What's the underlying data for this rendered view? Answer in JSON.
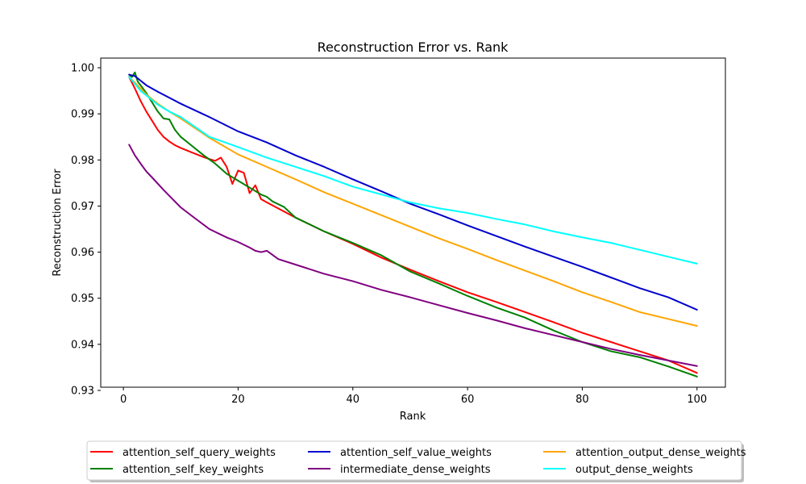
{
  "chart_data": {
    "type": "line",
    "title": "Reconstruction Error vs. Rank",
    "xlabel": "Rank",
    "ylabel": "Reconstruction Error",
    "xlim": [
      -3.95,
      104.95
    ],
    "ylim": [
      0.9307,
      1.0021
    ],
    "xticks": [
      0,
      20,
      40,
      60,
      80,
      100
    ],
    "xtick_labels": [
      "0",
      "20",
      "40",
      "60",
      "80",
      "100"
    ],
    "yticks": [
      0.93,
      0.94,
      0.95,
      0.96,
      0.97,
      0.98,
      0.99,
      1.0
    ],
    "ytick_labels": [
      "0.93",
      "0.94",
      "0.95",
      "0.96",
      "0.97",
      "0.98",
      "0.99",
      "1.00"
    ],
    "grid": false,
    "legend_placement": "bottom-center",
    "legend_columns": 3,
    "series": [
      {
        "name": "attention_self_query_weights",
        "color": "#ff0000",
        "x": [
          1,
          2,
          3,
          4,
          5,
          6,
          7,
          8,
          9,
          10,
          12,
          14,
          16,
          17,
          18,
          19,
          20,
          21,
          22,
          23,
          24,
          25,
          30,
          35,
          40,
          45,
          50,
          55,
          60,
          65,
          70,
          75,
          80,
          85,
          90,
          95,
          100
        ],
        "y": [
          0.998,
          0.9955,
          0.9928,
          0.9905,
          0.9885,
          0.9865,
          0.985,
          0.984,
          0.9832,
          0.9826,
          0.9816,
          0.9806,
          0.9798,
          0.9805,
          0.9785,
          0.9748,
          0.9777,
          0.9772,
          0.9728,
          0.9745,
          0.9715,
          0.9708,
          0.9675,
          0.9645,
          0.9618,
          0.9588,
          0.9562,
          0.9537,
          0.9513,
          0.9492,
          0.947,
          0.9448,
          0.9425,
          0.9405,
          0.9385,
          0.9365,
          0.9338
        ]
      },
      {
        "name": "attention_self_key_weights",
        "color": "#008000",
        "x": [
          1,
          1.5,
          2,
          2.5,
          3,
          4,
          5,
          6,
          7,
          8,
          9,
          10,
          12,
          14,
          16,
          18,
          20,
          22,
          24,
          25,
          26,
          28,
          30,
          35,
          40,
          45,
          50,
          55,
          60,
          65,
          70,
          75,
          80,
          85,
          90,
          95,
          100
        ],
        "y": [
          0.9985,
          0.998,
          0.999,
          0.997,
          0.9962,
          0.9945,
          0.9925,
          0.9905,
          0.989,
          0.9888,
          0.9865,
          0.985,
          0.983,
          0.981,
          0.9792,
          0.977,
          0.9755,
          0.974,
          0.9725,
          0.972,
          0.971,
          0.9698,
          0.9675,
          0.9645,
          0.962,
          0.9593,
          0.9558,
          0.9532,
          0.9505,
          0.948,
          0.9458,
          0.943,
          0.9405,
          0.9385,
          0.9372,
          0.9352,
          0.933
        ]
      },
      {
        "name": "attention_self_value_weights",
        "color": "#0000cd",
        "x": [
          1,
          2,
          3,
          4,
          5,
          6,
          8,
          10,
          15,
          20,
          25,
          30,
          35,
          40,
          45,
          50,
          55,
          60,
          65,
          70,
          75,
          80,
          85,
          90,
          95,
          100
        ],
        "y": [
          0.9985,
          0.9982,
          0.9972,
          0.9962,
          0.9955,
          0.9948,
          0.9935,
          0.9922,
          0.9893,
          0.9862,
          0.9838,
          0.981,
          0.9785,
          0.9758,
          0.9732,
          0.9705,
          0.9682,
          0.9658,
          0.9635,
          0.9612,
          0.959,
          0.9568,
          0.9545,
          0.9522,
          0.9502,
          0.9475
        ]
      },
      {
        "name": "intermediate_dense_weights",
        "color": "#800080",
        "x": [
          1,
          2,
          3,
          4,
          5,
          7,
          10,
          12,
          15,
          18,
          20,
          22,
          23,
          24,
          25,
          27,
          30,
          35,
          40,
          45,
          50,
          55,
          60,
          65,
          70,
          75,
          80,
          85,
          90,
          95,
          100
        ],
        "y": [
          0.9833,
          0.981,
          0.9792,
          0.9775,
          0.9762,
          0.9735,
          0.9697,
          0.9678,
          0.965,
          0.9632,
          0.9622,
          0.961,
          0.9603,
          0.96,
          0.9603,
          0.9585,
          0.9573,
          0.9553,
          0.9537,
          0.9518,
          0.9502,
          0.9485,
          0.9468,
          0.9452,
          0.9435,
          0.942,
          0.9405,
          0.939,
          0.9377,
          0.9365,
          0.9353
        ]
      },
      {
        "name": "attention_output_dense_weights",
        "color": "#ffa500",
        "x": [
          1,
          2,
          3,
          4,
          5,
          6,
          8,
          10,
          15,
          20,
          25,
          30,
          35,
          40,
          45,
          50,
          55,
          60,
          65,
          70,
          75,
          80,
          85,
          90,
          95,
          100
        ],
        "y": [
          0.998,
          0.9968,
          0.9955,
          0.9942,
          0.9932,
          0.9922,
          0.9905,
          0.989,
          0.9848,
          0.9812,
          0.9785,
          0.9758,
          0.973,
          0.9705,
          0.968,
          0.9655,
          0.963,
          0.9607,
          0.9583,
          0.956,
          0.9537,
          0.9513,
          0.9492,
          0.947,
          0.9455,
          0.944
        ]
      },
      {
        "name": "output_dense_weights",
        "color": "#00ffff",
        "x": [
          1,
          2,
          3,
          4,
          5,
          6,
          8,
          10,
          15,
          20,
          25,
          30,
          35,
          40,
          45,
          50,
          55,
          60,
          65,
          70,
          75,
          80,
          85,
          90,
          95,
          100
        ],
        "y": [
          0.998,
          0.9965,
          0.995,
          0.994,
          0.993,
          0.992,
          0.9905,
          0.9893,
          0.985,
          0.9828,
          0.9805,
          0.9785,
          0.9765,
          0.9742,
          0.9725,
          0.9708,
          0.9695,
          0.9685,
          0.9672,
          0.966,
          0.9645,
          0.9632,
          0.962,
          0.9605,
          0.959,
          0.9575
        ]
      }
    ]
  }
}
